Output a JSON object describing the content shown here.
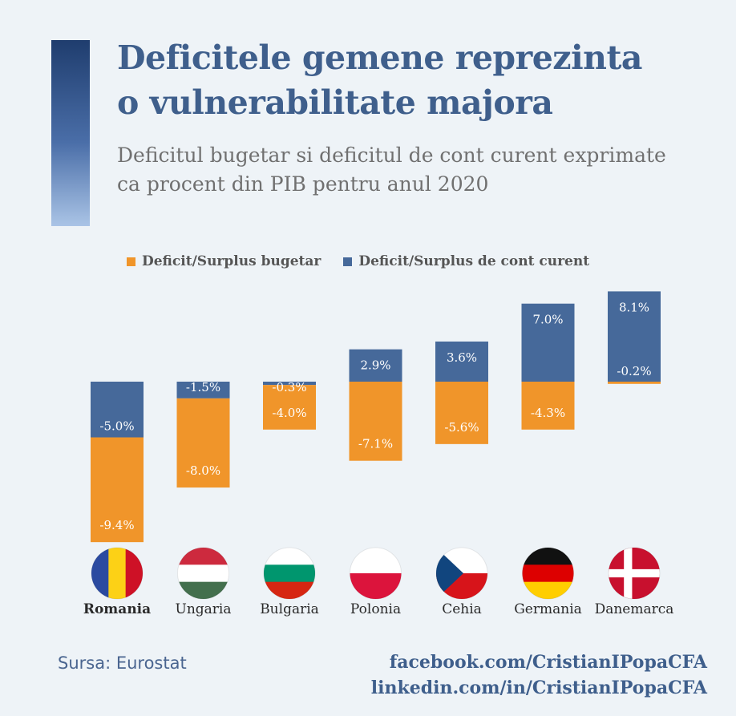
{
  "header": {
    "title_line1": "Deficitele gemene reprezinta",
    "title_line2": "o vulnerabilitate majora",
    "subtitle_line1": "Deficitul bugetar si deficitul de cont curent exprimate",
    "subtitle_line2": "ca procent din PIB pentru anul 2020"
  },
  "colors": {
    "budget": "#f0952a",
    "current_account": "#46699a"
  },
  "chart_data": {
    "type": "bar",
    "stacked": true,
    "categories": [
      "Romania",
      "Ungaria",
      "Bulgaria",
      "Polonia",
      "Cehia",
      "Germania",
      "Danemarca"
    ],
    "highlight_category": "Romania",
    "series": [
      {
        "name": "Deficit/Surplus bugetar",
        "values": [
          -9.4,
          -8.0,
          -4.0,
          -7.1,
          -5.6,
          -4.3,
          -0.2
        ]
      },
      {
        "name": "Deficit/Surplus de cont curent",
        "values": [
          -5.0,
          -1.5,
          -0.3,
          2.9,
          3.6,
          7.0,
          8.1
        ]
      }
    ],
    "data_labels": {
      "budget": [
        "-9.4%",
        "-8.0%",
        "-4.0%",
        "-7.1%",
        "-5.6%",
        "-4.3%",
        "-0.2%"
      ],
      "current_account": [
        "-5.0%",
        "-1.5%",
        "-0.3%",
        "2.9%",
        "3.6%",
        "7.0%",
        "8.1%"
      ]
    },
    "legend_position": "top",
    "grid": false,
    "ylim": [
      -14.5,
      8.3
    ],
    "flags": [
      "romania-flag",
      "hungary-flag",
      "bulgaria-flag",
      "poland-flag",
      "czech-flag",
      "germany-flag",
      "denmark-flag"
    ]
  },
  "footer": {
    "source": "Sursa: Eurostat",
    "facebook": "facebook.com/CristianIPopaCFA",
    "linkedin": "linkedin.com/in/CristianIPopaCFA"
  }
}
